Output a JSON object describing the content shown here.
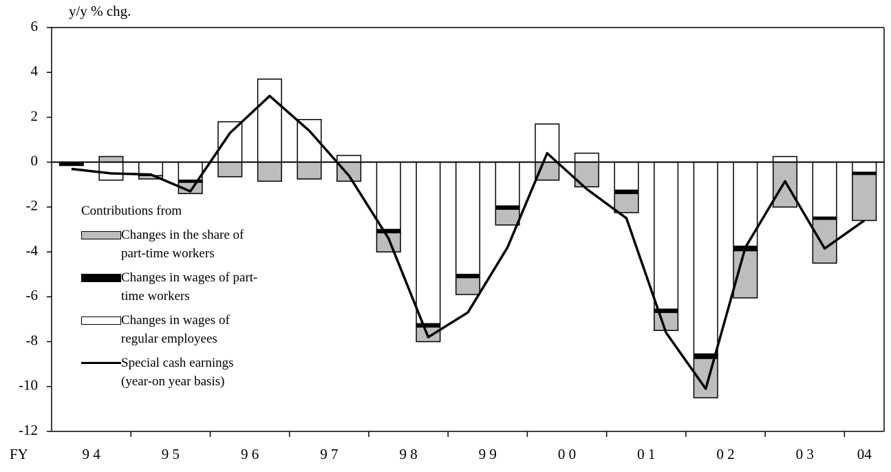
{
  "chart_data": {
    "type": "bar_line",
    "y_axis_label": "y/y % chg.",
    "x_prefix": "FY",
    "x_labels": [
      "9 4",
      "9 5",
      "9 6",
      "9 7",
      "9 8",
      "9 9",
      "0 0",
      "0 1",
      "0 2",
      "0 3",
      "04"
    ],
    "legend_title": "Contributions from",
    "ylim": [
      -12,
      6
    ],
    "yticks": [
      -12,
      -10,
      -8,
      -6,
      -4,
      -2,
      0,
      2,
      4,
      6
    ],
    "series": [
      {
        "name": "Changes in the share of part-time workers",
        "type": "bar",
        "color": "#bdbdbd",
        "values": [
          0,
          0.25,
          -0.15,
          -0.5,
          -0.65,
          -0.85,
          -0.75,
          -0.85,
          -0.85,
          -0.65,
          -0.75,
          -0.7,
          -0.8,
          -1.1,
          -0.85,
          -0.8,
          -1.75,
          -2.1,
          -2.0,
          -1.95,
          -2.05
        ]
      },
      {
        "name": "Changes in wages of part-time workers",
        "type": "bar",
        "color": "#000000",
        "values": [
          -0.15,
          0,
          0,
          -0.1,
          0,
          0,
          0,
          0,
          -0.15,
          -0.15,
          -0.15,
          -0.15,
          0,
          0,
          -0.15,
          -0.15,
          -0.2,
          -0.2,
          0,
          -0.1,
          -0.1
        ]
      },
      {
        "name": "Changes in wages of regular employees",
        "type": "bar",
        "color": "#ffffff",
        "values": [
          0,
          -0.8,
          -0.6,
          -0.8,
          1.8,
          3.7,
          1.9,
          0.3,
          -3.0,
          -7.2,
          -5.0,
          -1.95,
          1.7,
          0.4,
          -1.25,
          -6.55,
          -8.55,
          -3.75,
          0.25,
          -2.45,
          -0.45
        ]
      },
      {
        "name": "Special cash earnings (year-on year basis)",
        "type": "line",
        "color": "#000000",
        "values": [
          -0.3,
          -0.5,
          -0.55,
          -1.3,
          1.3,
          2.95,
          1.4,
          -0.6,
          -3.4,
          -7.8,
          -6.7,
          -3.8,
          0.4,
          -1.2,
          -2.5,
          -7.6,
          -10.1,
          -3.8,
          -0.85,
          -3.85,
          -2.6
        ]
      }
    ]
  }
}
